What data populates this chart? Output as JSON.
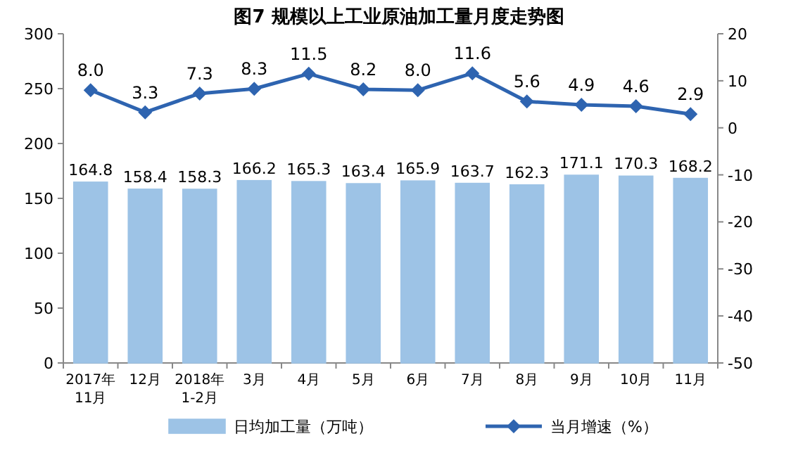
{
  "chart_data": {
    "type": "bar",
    "title": "图7  规模以上工业原油加工量月度走势图",
    "categories": [
      "2017年\n11月",
      "12月",
      "2018年\n1-2月",
      "3月",
      "4月",
      "5月",
      "6月",
      "7月",
      "8月",
      "9月",
      "10月",
      "11月"
    ],
    "series": [
      {
        "name": "日均加工量（万吨）",
        "color": "#9dc3e6",
        "values": [
          164.8,
          158.4,
          158.3,
          166.2,
          165.3,
          163.4,
          165.9,
          163.7,
          162.3,
          171.1,
          170.3,
          168.2
        ],
        "value_labels": [
          "164.8",
          "158.4",
          "158.3",
          "166.2",
          "165.3",
          "163.4",
          "165.9",
          "163.7",
          "162.3",
          "171.1",
          "170.3",
          "168.2"
        ]
      },
      {
        "name": "当月增速（%）",
        "type": "line",
        "axis": "y2",
        "color": "#2e64b0",
        "values": [
          8,
          3.3,
          7.3,
          8.3,
          11.5,
          8.2,
          8,
          11.6,
          5.6,
          4.9,
          4.6,
          2.9
        ],
        "value_labels": [
          "8.0",
          "3.3",
          "7.3",
          "8.3",
          "11.5",
          "8.2",
          "8.0",
          "11.6",
          "5.6",
          "4.9",
          "4.6",
          "2.9"
        ]
      }
    ],
    "ylim": [
      0,
      300
    ],
    "yticks": [
      0,
      50,
      100,
      150,
      200,
      250,
      300
    ],
    "y2lim": [
      -50,
      20
    ],
    "y2ticks": [
      -50,
      -40,
      -30,
      -20,
      -10,
      0,
      10,
      20
    ],
    "legend": "bottom",
    "marker": "diamond",
    "grid": false
  }
}
